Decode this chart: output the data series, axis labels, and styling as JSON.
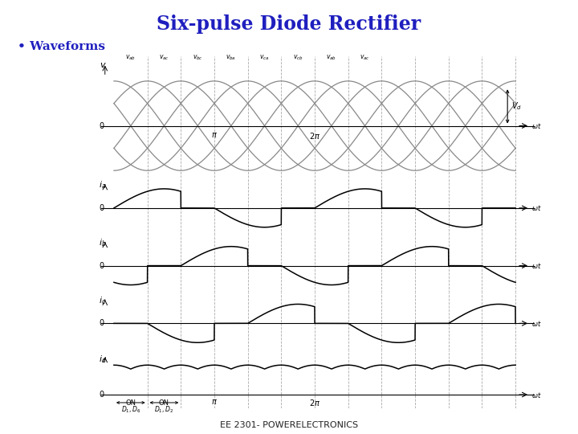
{
  "title": "Six-pulse Diode Rectifier",
  "subtitle": "• Waveforms",
  "footer": "EE 2301- POWERELECTRONICS",
  "title_color": "#1f1fbf",
  "subtitle_color": "#1f1fbf",
  "bg_color": "#ffffff",
  "line_color": "#000000",
  "dashed_line_color": "#999999",
  "voltage_label_texts": [
    "v_{ab}",
    "v_{ac}",
    "v_{bc}",
    "v_{ba}",
    "v_{ca}",
    "v_{cb}",
    "v_{ab}",
    "v_{ac}"
  ],
  "panel_labels": [
    "v",
    "i_a",
    "i_b",
    "i_c",
    "i_d"
  ]
}
